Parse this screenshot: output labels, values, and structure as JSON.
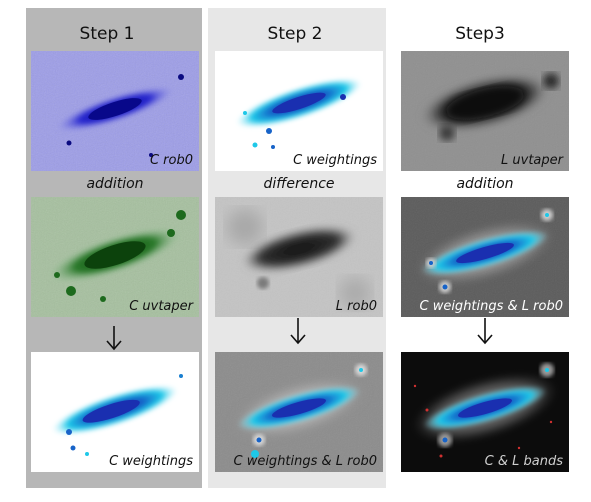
{
  "steps": [
    {
      "title": "Step 1",
      "panels": [
        {
          "caption": "C rob0",
          "style": "blue-noise"
        },
        {
          "caption": "C uvtaper",
          "style": "green-noise"
        },
        {
          "caption": "C weightings",
          "style": "white-cyan"
        }
      ],
      "operation": "addition"
    },
    {
      "title": "Step 2",
      "panels": [
        {
          "caption": "C weightings",
          "style": "white-cyan"
        },
        {
          "caption": "L rob0",
          "style": "grey-blur"
        },
        {
          "caption": "C weightings  & L rob0",
          "style": "grey-cyan"
        }
      ],
      "operation": "difference"
    },
    {
      "title": "Step3",
      "panels": [
        {
          "caption": "L uvtaper",
          "style": "grey-dark"
        },
        {
          "caption": "C weightings  & L rob0",
          "style": "dark-cyan"
        },
        {
          "caption": "C & L bands",
          "style": "black-cyan"
        }
      ],
      "operation": "addition"
    }
  ],
  "colors": {
    "step1_background": "#b7b7b7",
    "step2_background": "#e7e7e7",
    "galaxy_cyan": "#1ec8e8",
    "galaxy_core_blue": "#1a2fb0"
  }
}
